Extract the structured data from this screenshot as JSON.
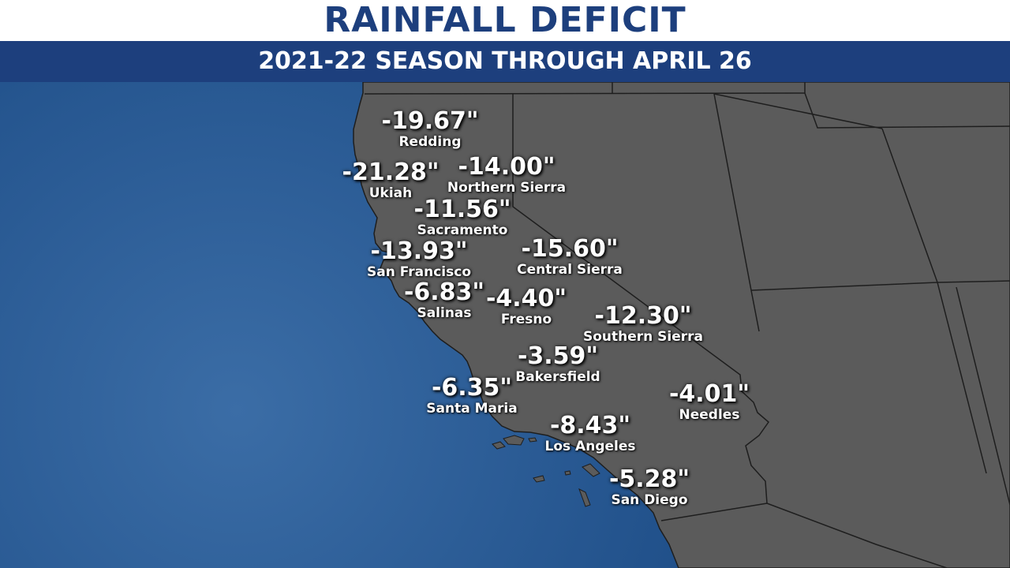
{
  "header": {
    "title": "RAINFALL DEFICIT",
    "subtitle": "2021-22 SEASON THROUGH APRIL 26"
  },
  "colors": {
    "ocean_center": "#3b6da6",
    "ocean_edge": "#174680",
    "land": "#5b5b5b",
    "borders": "#1e1e1e",
    "title_text": "#1d3f7d",
    "subtitle_bar": "#1d3f7d",
    "label_text": "#ffffff"
  },
  "stations": [
    {
      "id": "redding",
      "name": "Redding",
      "value": "-19.67\""
    },
    {
      "id": "ukiah",
      "name": "Ukiah",
      "value": "-21.28\""
    },
    {
      "id": "northern-sierra",
      "name": "Northern Sierra",
      "value": "-14.00\""
    },
    {
      "id": "sacramento",
      "name": "Sacramento",
      "value": "-11.56\""
    },
    {
      "id": "san-francisco",
      "name": "San Francisco",
      "value": "-13.93\""
    },
    {
      "id": "central-sierra",
      "name": "Central Sierra",
      "value": "-15.60\""
    },
    {
      "id": "salinas",
      "name": "Salinas",
      "value": "-6.83\""
    },
    {
      "id": "fresno",
      "name": "Fresno",
      "value": "-4.40\""
    },
    {
      "id": "southern-sierra",
      "name": "Southern Sierra",
      "value": "-12.30\""
    },
    {
      "id": "bakersfield",
      "name": "Bakersfield",
      "value": "-3.59\""
    },
    {
      "id": "santa-maria",
      "name": "Santa Maria",
      "value": "-6.35\""
    },
    {
      "id": "needles",
      "name": "Needles",
      "value": "-4.01\""
    },
    {
      "id": "los-angeles",
      "name": "Los Angeles",
      "value": "-8.43\""
    },
    {
      "id": "san-diego",
      "name": "San Diego",
      "value": "-5.28\""
    }
  ]
}
